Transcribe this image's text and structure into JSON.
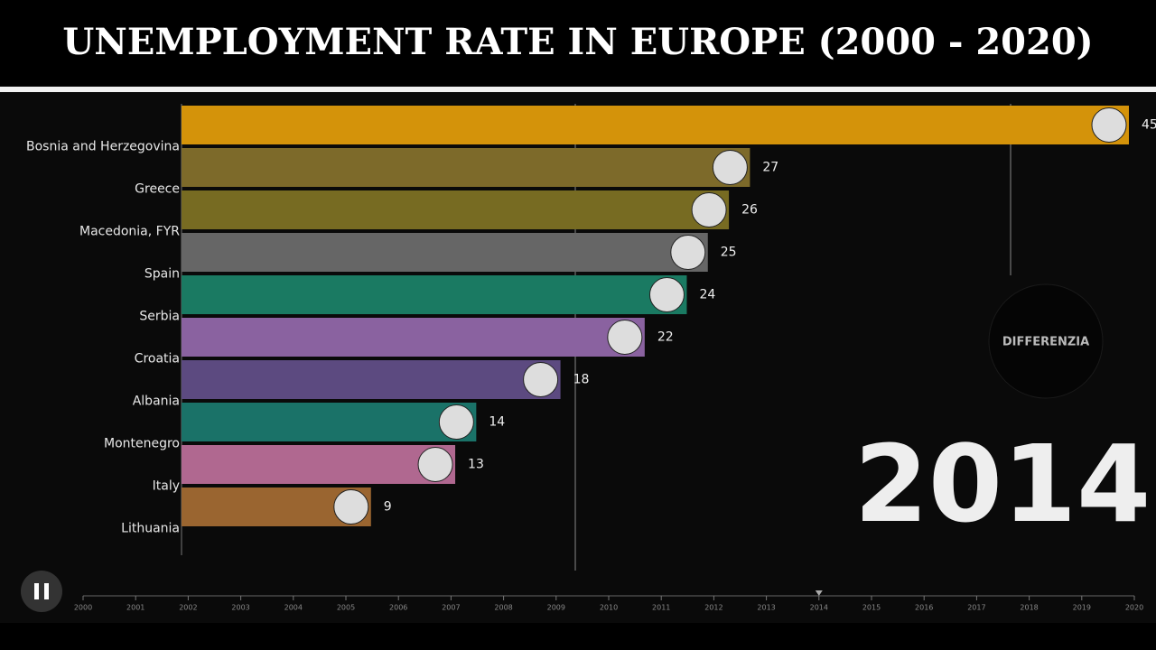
{
  "chart_data": {
    "type": "bar",
    "title": "UNEMPLOYMENT RATE IN EUROPE  (2000 - 2020)",
    "categories": [
      "Bosnia and Herzegovina",
      "Greece",
      "Macedonia, FYR",
      "Spain",
      "Serbia",
      "Croatia",
      "Albania",
      "Montenegro",
      "Italy",
      "Lithuania"
    ],
    "values": [
      45,
      27,
      26,
      25,
      24,
      22,
      18,
      14,
      13,
      9
    ],
    "colors": [
      "#d4930a",
      "#7d6a2a",
      "#776b22",
      "#666666",
      "#1a7a62",
      "#8a62a0",
      "#5c4a80",
      "#1a7268",
      "#b06890",
      "#9a6530"
    ],
    "year": "2014",
    "watermark": "DIFFERENZIA",
    "timeline": {
      "years": [
        2000,
        2001,
        2002,
        2003,
        2004,
        2005,
        2006,
        2007,
        2008,
        2009,
        2010,
        2011,
        2012,
        2013,
        2014,
        2015,
        2016,
        2017,
        2018,
        2019,
        2020
      ],
      "current": 2014
    }
  }
}
